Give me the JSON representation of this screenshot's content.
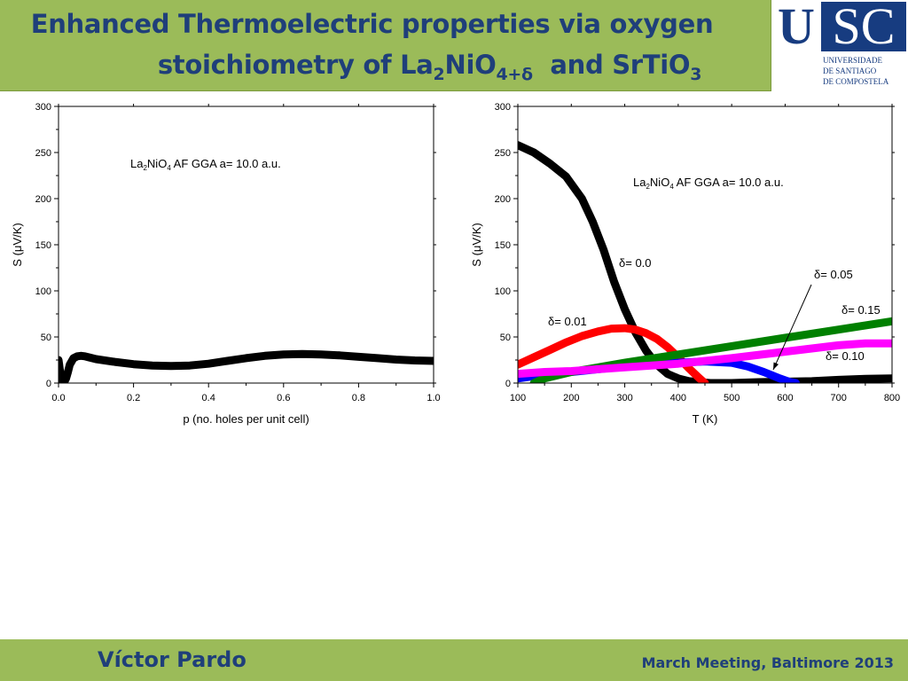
{
  "header": {
    "title_line1": "Enhanced Thermoelectric properties via oxygen",
    "title_line2_pre": "stoichiometry of La",
    "title_line2_sub1": "2",
    "title_line2_mid": "NiO",
    "title_line2_sub2": "4+δ",
    "title_line2_post": "  and SrTiO",
    "title_line2_sub3": "3"
  },
  "logo": {
    "big_u": "U",
    "big_sc": "SC",
    "line1": "UNIVERSIDADE",
    "line2": "DE SANTIAGO",
    "line3": "DE COMPOSTELA"
  },
  "footer": {
    "author": "Víctor Pardo",
    "event": "March Meeting, Baltimore 2013"
  },
  "chart_data": [
    {
      "type": "line",
      "xlabel": "p (no. holes per unit cell)",
      "ylabel": "S (μV/K)",
      "xlim": [
        0,
        1
      ],
      "ylim": [
        0,
        300
      ],
      "xticks": [
        "0.0",
        "0.2",
        "0.4",
        "0.6",
        "0.8",
        "1.0"
      ],
      "yticks": [
        "0",
        "50",
        "100",
        "150",
        "200",
        "250",
        "300"
      ],
      "annotation": {
        "text": "La2NiO4 AF GGA a= 10.0 a.u.",
        "main1": "La",
        "sub1": "2",
        "main2": "NiO",
        "sub2": "4",
        "rest": " AF GGA a= 10.0 a.u."
      },
      "series": [
        {
          "color": "#000000",
          "x": [
            0.0,
            0.005,
            0.01,
            0.015,
            0.02,
            0.025,
            0.03,
            0.04,
            0.05,
            0.06,
            0.07,
            0.08,
            0.1,
            0.15,
            0.2,
            0.25,
            0.3,
            0.35,
            0.4,
            0.45,
            0.5,
            0.55,
            0.6,
            0.65,
            0.7,
            0.75,
            0.8,
            0.85,
            0.9,
            0.95,
            1.0
          ],
          "y": [
            25,
            10,
            2,
            1,
            5,
            12,
            20,
            27,
            29,
            29.5,
            29,
            28,
            26,
            23,
            20.5,
            19,
            18.5,
            19,
            21,
            24,
            27,
            29.5,
            31,
            31.5,
            31,
            30,
            28.5,
            27,
            25.5,
            24.5,
            24
          ]
        }
      ]
    },
    {
      "type": "line",
      "xlabel": "T (K)",
      "ylabel": "S (μV/K)",
      "xlim": [
        100,
        800
      ],
      "ylim": [
        0,
        300
      ],
      "xticks": [
        "100",
        "200",
        "300",
        "400",
        "500",
        "600",
        "700",
        "800"
      ],
      "yticks": [
        "0",
        "50",
        "100",
        "150",
        "200",
        "250",
        "300"
      ],
      "annotation": {
        "text": "La2NiO4 AF GGA a= 10.0 a.u.",
        "main1": "La",
        "sub1": "2",
        "main2": "NiO",
        "sub2": "4",
        "rest": " AF GGA a= 10.0 a.u."
      },
      "series": [
        {
          "name": "δ= 0.0",
          "color": "#000000",
          "x": [
            100,
            130,
            160,
            190,
            220,
            240,
            260,
            280,
            300,
            320,
            340,
            360,
            380,
            400,
            420,
            440,
            460,
            500,
            550,
            600,
            650,
            700,
            750,
            800
          ],
          "y": [
            258,
            250,
            238,
            224,
            200,
            175,
            145,
            110,
            80,
            55,
            35,
            20,
            10,
            5,
            2,
            1,
            0,
            0,
            1,
            1.5,
            2,
            3.5,
            4.5,
            5
          ]
        },
        {
          "name": "δ= 0.01",
          "color": "#ff0000",
          "x": [
            100,
            130,
            160,
            190,
            220,
            250,
            275,
            300,
            320,
            340,
            360,
            380,
            400,
            420,
            440,
            450
          ],
          "y": [
            20,
            28,
            36,
            44,
            51,
            56,
            59,
            59.5,
            58,
            54,
            48,
            39,
            28,
            16,
            5,
            0
          ]
        },
        {
          "name": "δ= 0.05",
          "color": "#0000ff",
          "x": [
            100,
            150,
            200,
            250,
            300,
            350,
            400,
            450,
            500,
            530,
            560,
            590,
            610,
            620
          ],
          "y": [
            5,
            9,
            12,
            15,
            18,
            20,
            22,
            23.5,
            22,
            18,
            12,
            5,
            1,
            0
          ]
        },
        {
          "name": "δ= 0.15",
          "color": "#008000",
          "x": [
            130,
            150,
            200,
            300,
            400,
            500,
            600,
            700,
            800
          ],
          "y": [
            0,
            5,
            12,
            22,
            31,
            40,
            49,
            58,
            67
          ]
        },
        {
          "name": "δ= 0.10",
          "color": "#ff00ff",
          "x": [
            100,
            150,
            200,
            300,
            400,
            500,
            600,
            700,
            750,
            800
          ],
          "y": [
            10,
            12,
            13,
            17,
            21,
            27,
            34,
            41,
            43,
            43
          ]
        }
      ]
    }
  ]
}
